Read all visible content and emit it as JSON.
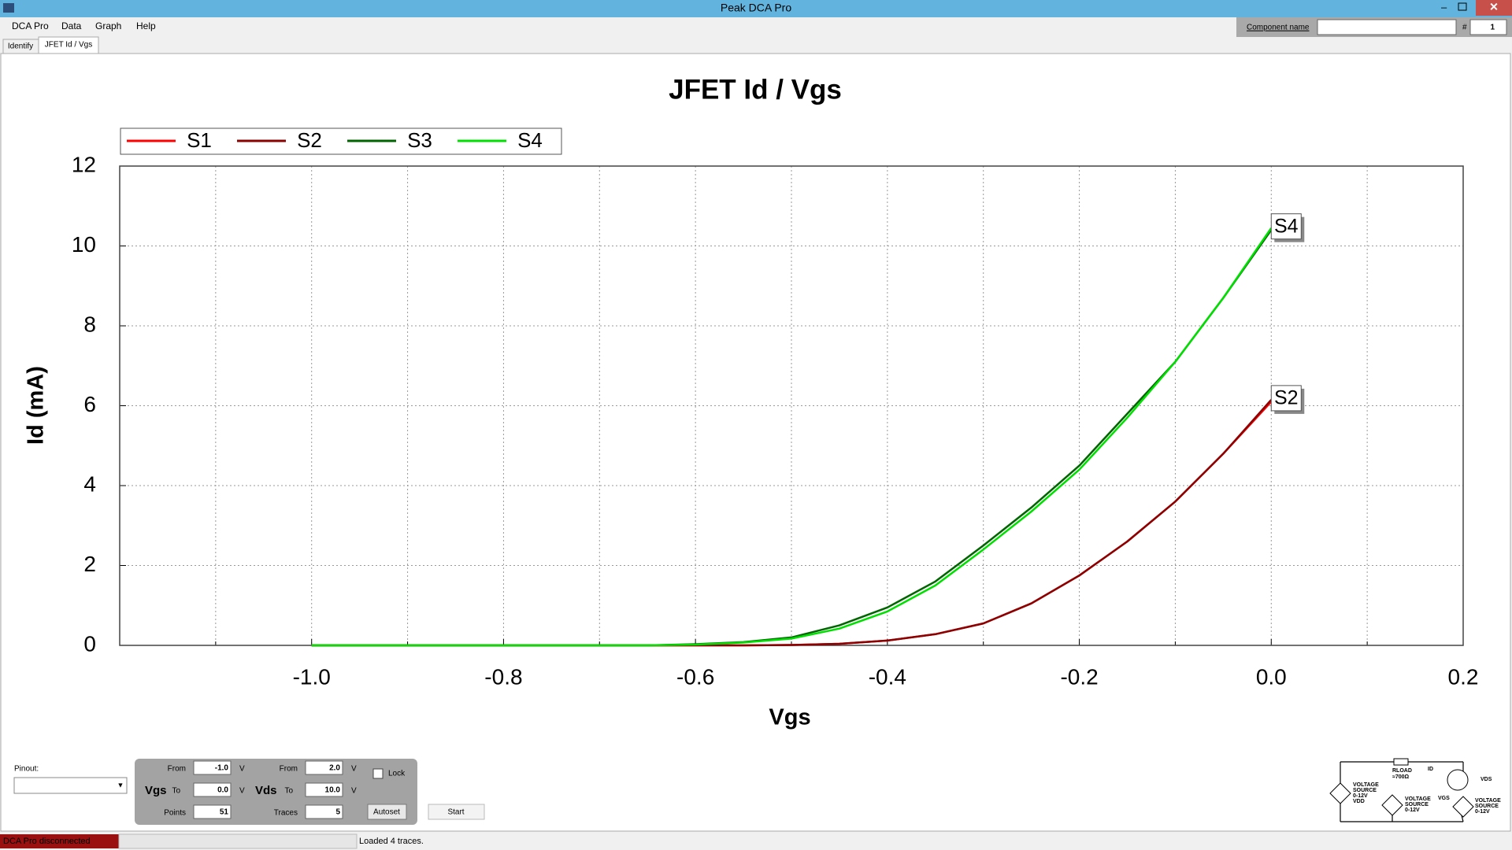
{
  "window": {
    "title": "Peak DCA Pro"
  },
  "menu": [
    "DCA Pro",
    "Data",
    "Graph",
    "Help"
  ],
  "tabs": [
    "Identify",
    "JFET Id / Vgs"
  ],
  "component": {
    "label": "Component name",
    "number_label": "#",
    "number": "1"
  },
  "chart_data": {
    "type": "line",
    "title": "JFET Id / Vgs",
    "x_label": "Vgs",
    "y_label": "Id (mA)",
    "x": [
      -1.0,
      -0.95,
      -0.9,
      -0.85,
      -0.8,
      -0.75,
      -0.7,
      -0.65,
      -0.6,
      -0.55,
      -0.5,
      -0.45,
      -0.4,
      -0.35,
      -0.3,
      -0.25,
      -0.2,
      -0.15,
      -0.1,
      -0.05,
      0.0
    ],
    "series": [
      {
        "name": "S1",
        "color": "#ff0000",
        "values": [
          0,
          0,
          0,
          0,
          0,
          0,
          0,
          0,
          0,
          0,
          0.01,
          0.04,
          0.12,
          0.28,
          0.55,
          1.05,
          1.75,
          2.6,
          3.6,
          4.8,
          6.1
        ]
      },
      {
        "name": "S2",
        "color": "#8b0000",
        "values": [
          0,
          0,
          0,
          0,
          0,
          0,
          0,
          0,
          0,
          0,
          0.01,
          0.04,
          0.12,
          0.28,
          0.55,
          1.05,
          1.75,
          2.6,
          3.6,
          4.8,
          6.15
        ]
      },
      {
        "name": "S3",
        "color": "#006400",
        "values": [
          0,
          0,
          0,
          0,
          0,
          0,
          0,
          0,
          0.03,
          0.08,
          0.2,
          0.5,
          0.95,
          1.6,
          2.5,
          3.45,
          4.5,
          5.8,
          7.1,
          8.7,
          10.4
        ]
      },
      {
        "name": "S4",
        "color": "#00e000",
        "values": [
          0,
          0,
          0,
          0,
          0,
          0,
          0,
          0,
          0.02,
          0.07,
          0.17,
          0.42,
          0.85,
          1.5,
          2.4,
          3.35,
          4.4,
          5.7,
          7.1,
          8.7,
          10.45
        ]
      }
    ],
    "annotations": [
      {
        "text": "S4",
        "x": 0.0,
        "y": 10.45
      },
      {
        "text": "S2",
        "x": 0.0,
        "y": 6.15
      }
    ],
    "xlim": [
      -1.2,
      0.2
    ],
    "xticks": [
      {
        "value": -1.0,
        "label": "-1.0"
      },
      {
        "value": -0.8,
        "label": "-0.8"
      },
      {
        "value": -0.6,
        "label": "-0.6"
      },
      {
        "value": -0.4,
        "label": "-0.4"
      },
      {
        "value": -0.2,
        "label": "-0.2"
      },
      {
        "value": 0.0,
        "label": "0.0"
      },
      0.2
    ],
    "xminorticks": [
      -1.1,
      -0.9,
      -0.7,
      -0.5,
      -0.3,
      -0.1,
      0.1
    ],
    "ylim": [
      0,
      12
    ],
    "yticks": [
      0,
      2,
      4,
      6,
      8,
      10,
      12
    ],
    "grid": true,
    "legend": "top-left"
  },
  "controls": {
    "pinout_label": "Pinout:",
    "vgs": {
      "label": "Vgs",
      "from_label": "From",
      "from": "-1.0",
      "to_label": "To",
      "to": "0.0",
      "unit": "V",
      "points_label": "Points",
      "points": "51"
    },
    "vds": {
      "label": "Vds",
      "from_label": "From",
      "from": "2.0",
      "to_label": "To",
      "to": "10.0",
      "unit": "V",
      "traces_label": "Traces",
      "traces": "5"
    },
    "lock": "Lock",
    "autoset": "Autoset",
    "start": "Start"
  },
  "circuit": {
    "sources": [
      [
        "VOLTAGE",
        "SOURCE",
        "0-12V",
        "VDD"
      ],
      [
        "VOLTAGE",
        "SOURCE",
        "0-12V"
      ],
      [
        "VOLTAGE",
        "SOURCE",
        "0-12V"
      ]
    ],
    "rload": "RLOAD",
    "r_value": "≈700Ω",
    "id": "ID",
    "vds": "VDS",
    "vgs": "VGS"
  },
  "status": {
    "connection": "DCA Pro disconnected",
    "message": "Loaded 4 traces."
  }
}
